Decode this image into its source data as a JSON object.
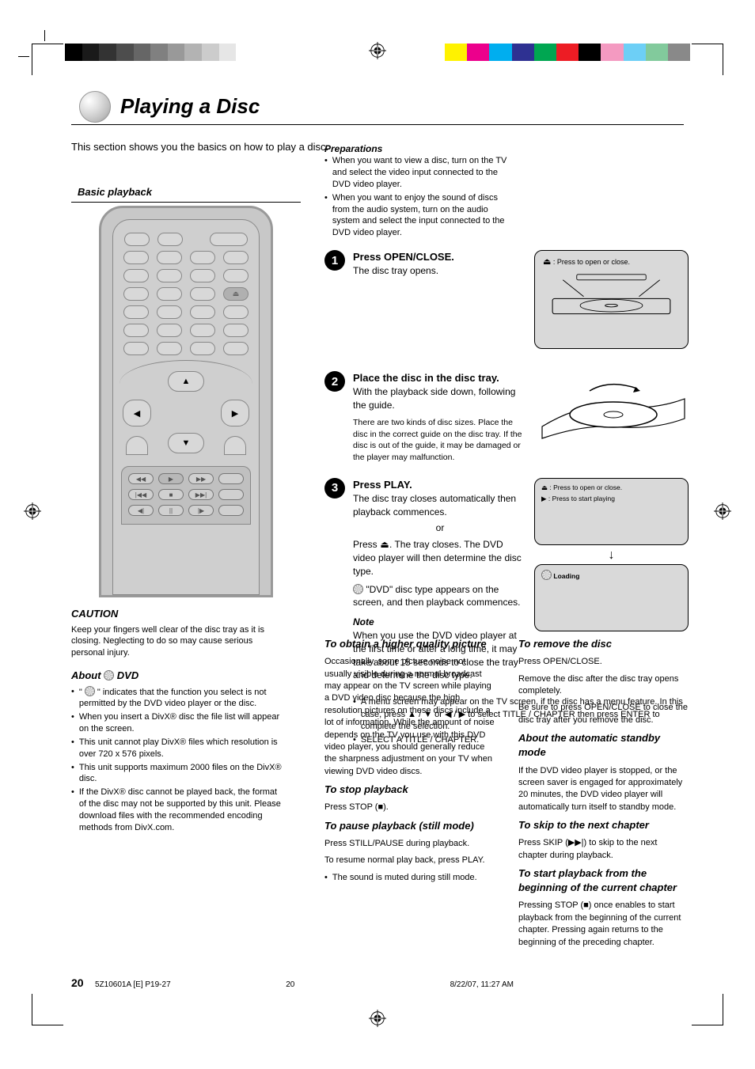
{
  "printer_marks": {
    "gray_bar_colors": [
      "#000000",
      "#1a1a1a",
      "#333333",
      "#4d4d4d",
      "#666666",
      "#808080",
      "#999999",
      "#b3b3b3",
      "#cccccc",
      "#e6e6e6",
      "#ffffff"
    ],
    "color_bar_colors": [
      "#fff200",
      "#ec008c",
      "#00aeef",
      "#2e3192",
      "#00a651",
      "#ed1c24",
      "#000000",
      "#f49ac1",
      "#6dcff6",
      "#82ca9c",
      "#898989"
    ]
  },
  "header": {
    "title": "Playing a Disc",
    "subtitle": "This section shows you the basics on how to play a disc.",
    "basic_label": "Basic playback"
  },
  "caution": {
    "heading": "CAUTION",
    "text": "Keep your fingers well clear of the disc tray as it is closing. Neglecting to do so may cause serious personal injury."
  },
  "about_dvd": {
    "heading": "About",
    "p1": "indicates that the function you select is not permitted by the DVD video player or the disc.",
    "p2": "When you insert a DivX® disc the file list will appear on the screen.",
    "p3": "This unit cannot play DivX® files which resolution is over 720 x 576 pixels.",
    "p4": "This unit supports maximum 2000 files on the DivX® disc.",
    "p5a": "If the DivX® disc cannot be played back, the format of the disc may not be supported by this unit.",
    "p5b": "Please download files with the recommended encoding methods from DivX.com."
  },
  "steps": [
    {
      "num": "1",
      "lead": "Press OPEN/CLOSE.",
      "text": "The disc tray opens.",
      "prep_heading": "Preparations",
      "prep_lines": [
        "When you want to view a disc, turn on the TV and select the video input connected to the DVD video player.",
        "When you want to enjoy the sound of discs from the audio system, turn on the audio system and select the input connected to the DVD video player."
      ],
      "box_eject_title": "Press to open or close."
    },
    {
      "num": "2",
      "lead": "Place the disc in the disc tray.",
      "text1": "With the playback side down, following the guide.",
      "text2": "There are two kinds of disc sizes. Place the disc in the correct guide on the disc tray. If the disc is out of the guide, it may be damaged or the player may malfunction."
    },
    {
      "num": "3",
      "lead": "Press PLAY.",
      "text": "The disc tray closes automatically then playback commences.",
      "or": "or",
      "eject_line": "Press      . The tray closes. The DVD video player will then determine the disc type.",
      "dvd_line": "\"DVD\" disc type appears on the screen, and then playback commences.",
      "note_label": "Note",
      "note_text": "When you use the DVD video player at the first time or after a long time, it may take about 15 seconds to close the tray and determine the disc type.",
      "menu_bullet1": "A menu screen may appear on the TV screen, if the disc has a menu feature. In this case, press ▲ / ▼ or ◀ / ▶ to select TITLE / CHAPTER then press ENTER to complete the selection.",
      "menu_bullet2": "SELECT A TITLE / CHAPTER.",
      "mid_label_title": "Press to start playing",
      "box2_load": "Loading"
    }
  ],
  "stop_col": {
    "heading": "To obtain a higher quality picture",
    "p1": "Occasionally, some picture noise not usually visible during a normal broadcast may appear on the TV screen while playing a DVD video disc because the high resolution pictures on these discs include a lot of information. While the amount of noise depends on the TV you use with this DVD video player, you should generally reduce the sharpness adjustment on your TV when viewing DVD video discs.",
    "stop_head": "To stop playback",
    "stop_text": "Press STOP (■).",
    "pause_head": "To pause playback (still mode)",
    "pause_text1": "Press STILL/PAUSE during playback.",
    "pause_text2": "To resume normal play back, press PLAY.",
    "snd_note": "The sound is muted during still mode."
  },
  "right_col": {
    "remove_head": "To remove the disc",
    "remove_text1": "Press OPEN/CLOSE.",
    "remove_text2": "Remove the disc after the disc tray opens completely.",
    "remove_text3": "Be sure to press OPEN/CLOSE to close the disc tray after you remove the disc.",
    "auto_head": "About the automatic standby mode",
    "auto_text": "If the DVD video player is stopped, or the screen saver is engaged for approximately 20 minutes, the DVD video player will automatically turn itself to standby mode.",
    "skip_head": "To skip to the next chapter",
    "skip_text": "Press SKIP (▶▶|) to skip to the next chapter during playback.",
    "start_head": "To start playback from the beginning of the current chapter",
    "start_text": "Pressing STOP (■) once enables to start playback from the beginning of the current chapter. Pressing again returns to the beginning of the preceding chapter."
  },
  "footer": {
    "page": "20",
    "file": "5Z10601A [E] P19-27",
    "date": "8/22/07, 11:27 AM",
    "sheet": "20"
  }
}
